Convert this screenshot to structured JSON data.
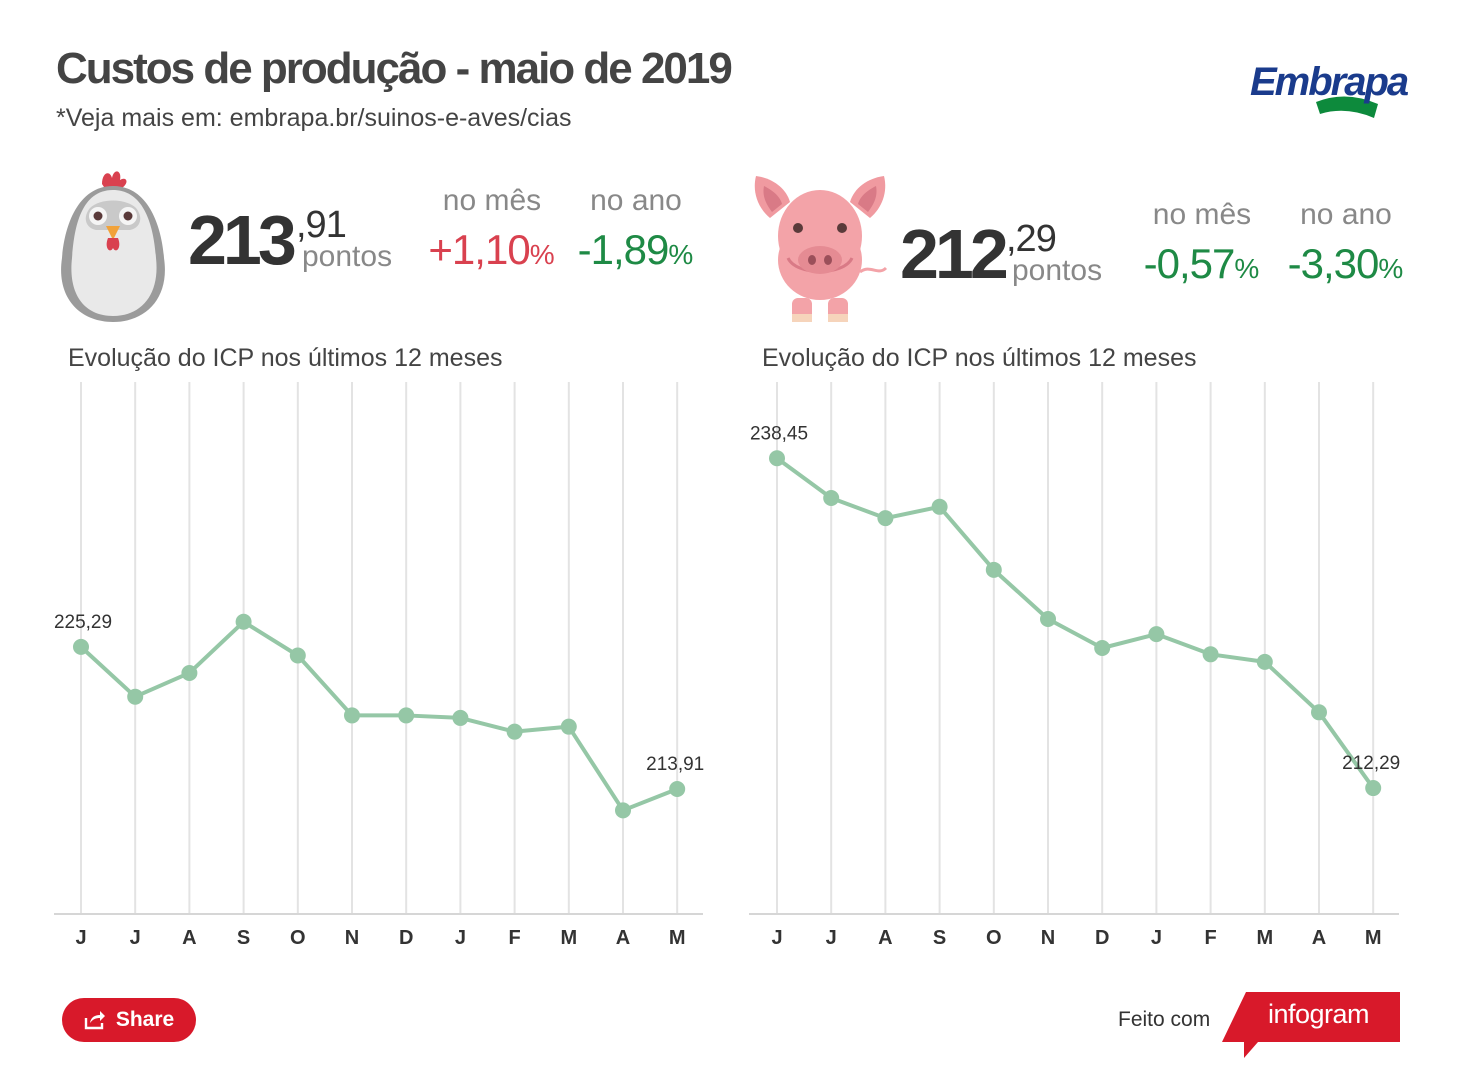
{
  "header": {
    "title": "Custos de produção - maio de 2019",
    "subtitle": "*Veja mais em: embrapa.br/suinos-e-aves/cias",
    "logo_text": "Embrapa"
  },
  "colors": {
    "line": "#95c7a6",
    "gridline": "#e3e3e3",
    "negative": "#1e8a45",
    "positive": "#d9414f",
    "share_button": "#d8192a",
    "logo_blue": "#1a3b8c",
    "logo_green": "#0d8a3c"
  },
  "chicken": {
    "icon": "chicken-icon",
    "value_int": "213",
    "value_dec": ",91",
    "unit": "pontos",
    "month_label": "no mês",
    "month_value": "+1,10",
    "year_label": "no ano",
    "year_value": "-1,89",
    "pct": "%"
  },
  "pig": {
    "icon": "pig-icon",
    "value_int": "212",
    "value_dec": ",29",
    "unit": "pontos",
    "month_label": "no mês",
    "month_value": "-0,57",
    "year_label": "no ano",
    "year_value": "-3,30",
    "pct": "%"
  },
  "chart_data": [
    {
      "type": "line",
      "title": "Evolução do ICP nos últimos 12 meses",
      "categories": [
        "J",
        "J",
        "A",
        "S",
        "O",
        "N",
        "D",
        "J",
        "F",
        "M",
        "A",
        "M"
      ],
      "values": [
        225.29,
        221.3,
        223.2,
        227.3,
        224.6,
        219.8,
        219.8,
        219.6,
        218.5,
        218.9,
        212.2,
        213.91
      ],
      "labels": {
        "0": "225,29",
        "11": "213,91"
      },
      "ylim": [
        203.9,
        246.5
      ],
      "grid": true
    },
    {
      "type": "line",
      "title": "Evolução do ICP nos últimos 12 meses",
      "categories": [
        "J",
        "J",
        "A",
        "S",
        "O",
        "N",
        "D",
        "J",
        "F",
        "M",
        "A",
        "M"
      ],
      "values": [
        238.45,
        235.3,
        233.7,
        234.6,
        229.6,
        225.7,
        223.4,
        224.5,
        222.9,
        222.3,
        218.3,
        212.29
      ],
      "labels": {
        "0": "238,45",
        "11": "212,29"
      },
      "ylim": [
        202.3,
        244.5
      ],
      "grid": true
    }
  ],
  "footer": {
    "share_label": "Share",
    "share_icon": "share-icon",
    "made_with": "Feito com",
    "brand": "infogram"
  }
}
